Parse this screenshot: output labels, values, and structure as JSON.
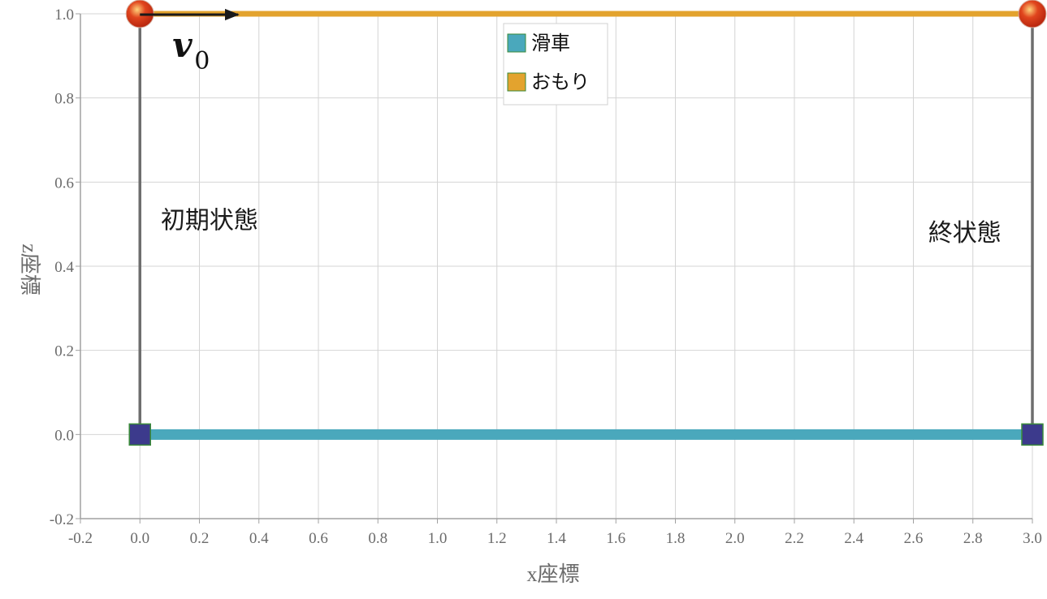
{
  "chart_data": {
    "type": "line",
    "xlabel": "x座標",
    "ylabel": "z座標",
    "xlim": [
      -0.2,
      3.0
    ],
    "ylim": [
      -0.2,
      1.0
    ],
    "xticks": [
      "-0.2",
      "0.0",
      "0.2",
      "0.4",
      "0.6",
      "0.8",
      "1.0",
      "1.2",
      "1.4",
      "1.6",
      "1.8",
      "2.0",
      "2.2",
      "2.4",
      "2.6",
      "2.8",
      "3.0"
    ],
    "yticks": [
      "-0.2",
      "0.0",
      "0.2",
      "0.4",
      "0.6",
      "0.8",
      "1.0"
    ],
    "grid": true,
    "legend_position": "top-center",
    "series": [
      {
        "name": "滑車",
        "color": "#4aa8bc",
        "x": [
          0.0,
          3.0
        ],
        "y": [
          0.0,
          0.0
        ]
      },
      {
        "name": "おもり",
        "color": "#e3a32e",
        "x": [
          0.0,
          3.0
        ],
        "y": [
          1.0,
          1.0
        ]
      }
    ],
    "strings": [
      {
        "x": 0.0,
        "y0": 0.0,
        "y1": 1.0
      },
      {
        "x": 3.0,
        "y0": 0.0,
        "y1": 1.0
      }
    ],
    "pulley_markers": [
      {
        "x": 0.0,
        "y": 0.0
      },
      {
        "x": 3.0,
        "y": 0.0
      }
    ],
    "pulley_marker_color": "#3c3a8c",
    "weight_markers": [
      {
        "x": 0.0,
        "y": 1.0
      },
      {
        "x": 3.0,
        "y": 1.0
      }
    ],
    "weight_marker_color": "#e0451e",
    "velocity_arrow": {
      "x0": 0.0,
      "y0": 1.0,
      "x1": 0.33,
      "y1": 1.0,
      "label": "v",
      "subscript": "0"
    },
    "annotations": [
      {
        "text": "初期状態",
        "x": 0.07,
        "y": 0.49
      },
      {
        "text": "終状態",
        "x": 2.65,
        "y": 0.46
      }
    ]
  }
}
